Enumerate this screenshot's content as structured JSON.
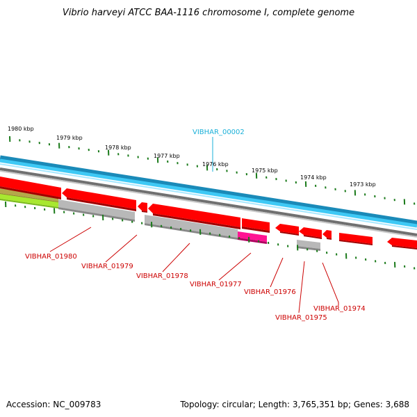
{
  "title": "Vibrio harveyi ATCC BAA-1116 chromosome I, complete genome",
  "footer": {
    "accession": "Accession: NC_009783",
    "summary": "Topology: circular; Length: 3,765,351 bp; Genes: 3,688"
  },
  "colors": {
    "forward_strand": "#29b5e8",
    "backbone": "#808080",
    "gene_red": "#ff0000",
    "gene_gray": "#b8b8b8",
    "gene_pink": "#ff1493",
    "gene_olive": "#b5a84a",
    "gene_green": "#a8e830",
    "tick_green": "#1a7a1a",
    "label_red": "#cc0000",
    "label_cyan": "#1ab0d8"
  },
  "kbp_labels": [
    "1980 kbp",
    "1979 kbp",
    "1978 kbp",
    "1977 kbp",
    "1976 kbp",
    "1975 kbp",
    "1974 kbp",
    "1973 kbp"
  ],
  "gene_labels": [
    {
      "id": "vibhar-00002",
      "text": "VIBHAR_00002",
      "color": "cyan"
    },
    {
      "id": "vibhar-01980",
      "text": "VIBHAR_01980",
      "color": "red"
    },
    {
      "id": "vibhar-01979",
      "text": "VIBHAR_01979",
      "color": "red"
    },
    {
      "id": "vibhar-01978",
      "text": "VIBHAR_01978",
      "color": "red"
    },
    {
      "id": "vibhar-01977",
      "text": "VIBHAR_01977",
      "color": "red"
    },
    {
      "id": "vibhar-01976",
      "text": "VIBHAR_01976",
      "color": "red"
    },
    {
      "id": "vibhar-01975",
      "text": "VIBHAR_01975",
      "color": "red"
    },
    {
      "id": "vibhar-01974",
      "text": "VIBHAR_01974",
      "color": "red"
    }
  ]
}
